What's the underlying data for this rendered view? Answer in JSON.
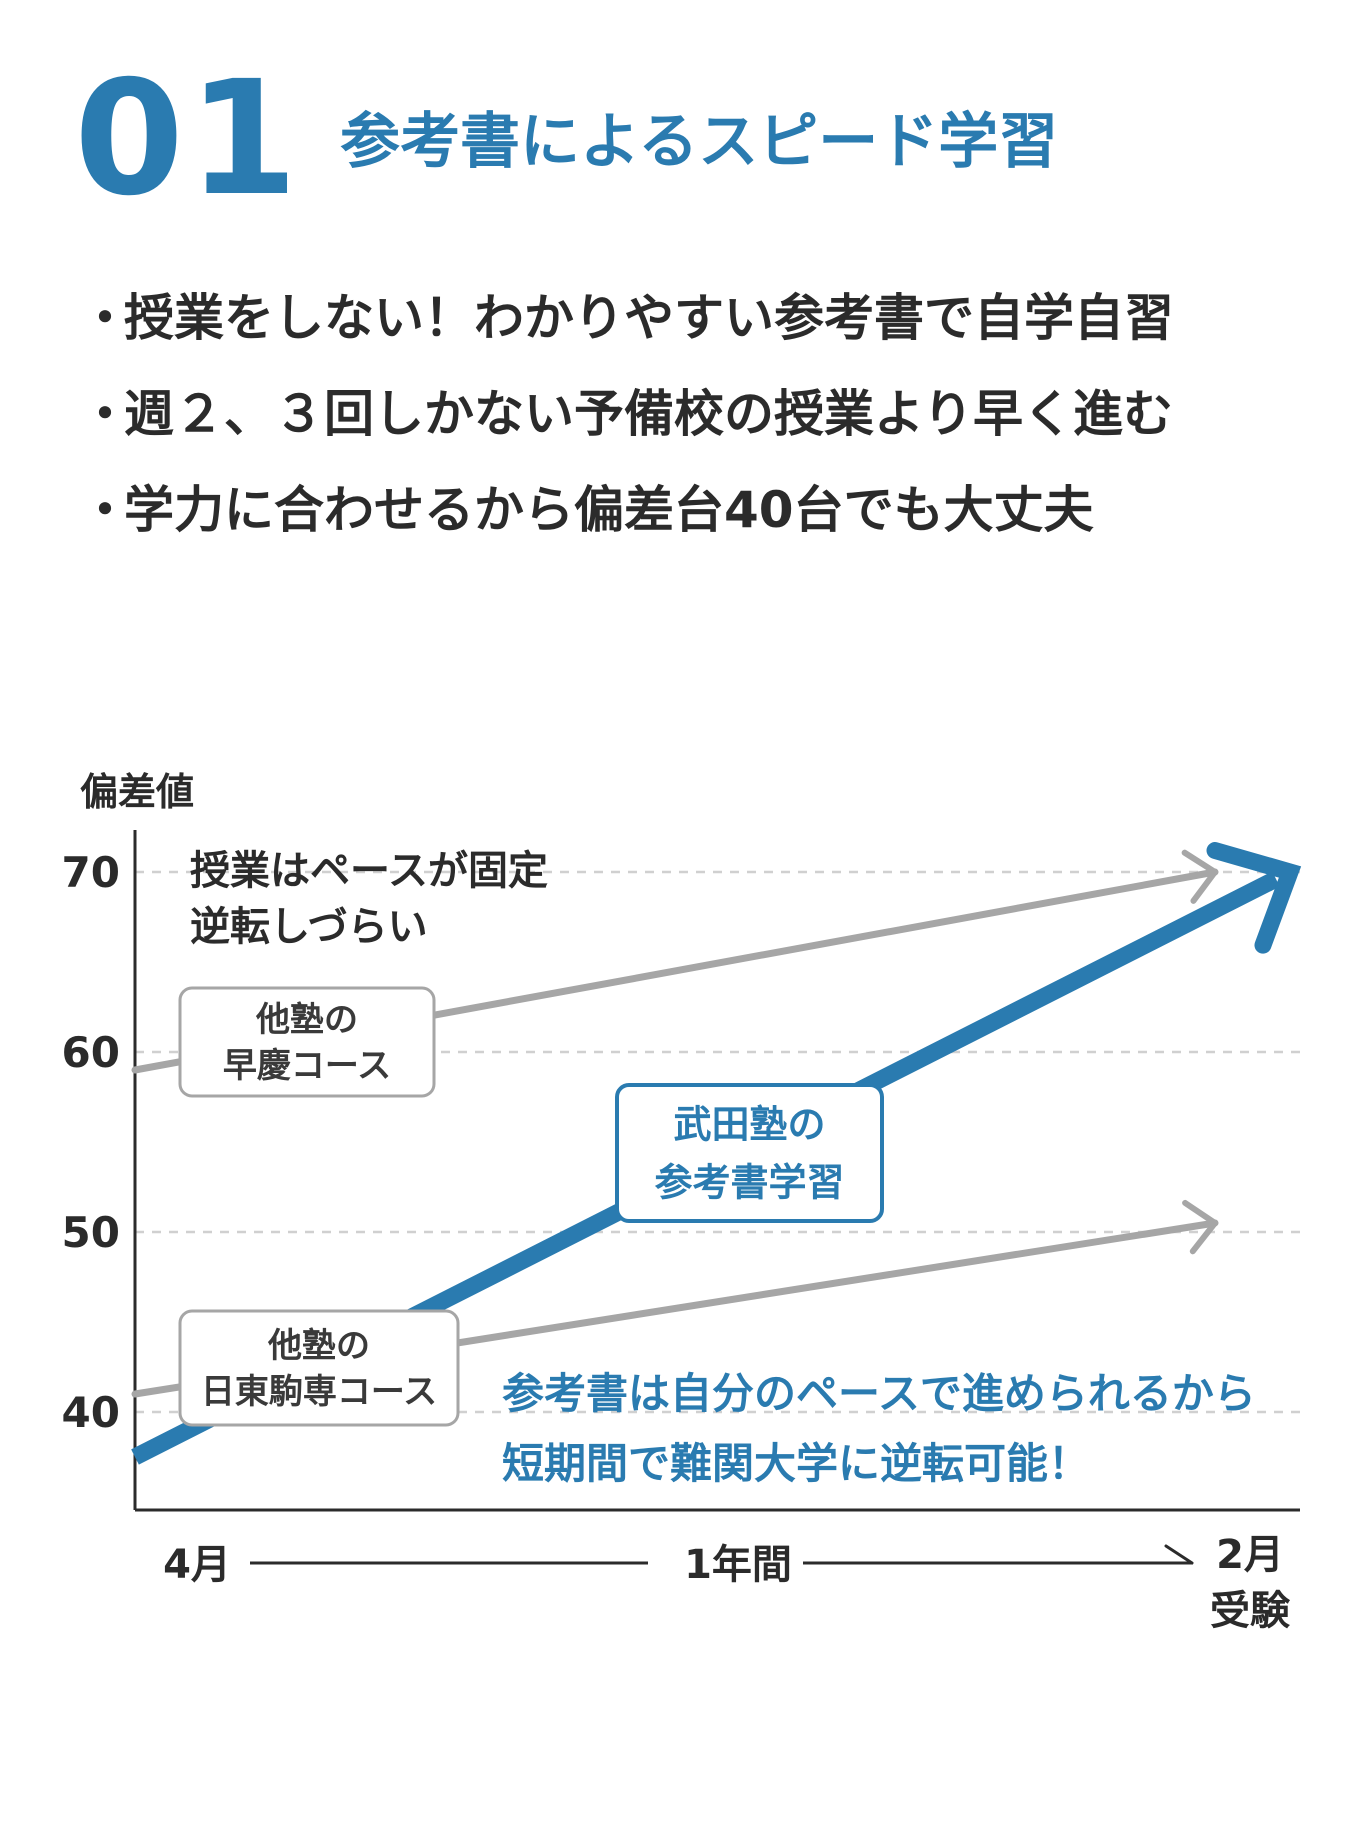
{
  "header": {
    "number": "01",
    "title": "参考書によるスピード学習"
  },
  "bullets": [
    "授業をしない！わかりやすい参考書で自学自習",
    "週２、３回しかない予備校の授業より早く進む",
    "学力に合わせるから偏差台40台でも大丈夫"
  ],
  "bullet_marker": "・",
  "chart_data": {
    "type": "line",
    "ylabel": "偏差値",
    "yticks": [
      70,
      60,
      50,
      40
    ],
    "ylim": [
      34.5,
      73.5
    ],
    "x_categories": [
      "4月",
      "1年間",
      "2月"
    ],
    "x_end_sub": "受験",
    "grid": "horizontal dashed at y ticks",
    "series": [
      {
        "name": "他塾の早慶コース",
        "label_lines": [
          "他塾の",
          "早慶コース"
        ],
        "start": 59,
        "end": 70,
        "color": "#a6a6a6",
        "emphasis": false
      },
      {
        "name": "他塾の日東駒専コース",
        "label_lines": [
          "他塾の",
          "日東駒専コース"
        ],
        "start": 41,
        "end": 50.5,
        "color": "#a6a6a6",
        "emphasis": false
      },
      {
        "name": "武田塾の参考書学習",
        "label_lines": [
          "武田塾の",
          "参考書学習"
        ],
        "start": 37.5,
        "end": 70,
        "color": "#2a7bb0",
        "emphasis": true
      }
    ],
    "annotations": {
      "top": [
        "授業はペースが固定",
        "逆転しづらい"
      ],
      "bottom": [
        "参考書は自分のペースで進められるから",
        "短期間で難関大学に逆転可能！"
      ]
    },
    "colors": {
      "accent": "#2a7bb0",
      "muted": "#a6a6a6",
      "grid": "#d0d0d0",
      "axis": "#2b2b2b"
    }
  }
}
